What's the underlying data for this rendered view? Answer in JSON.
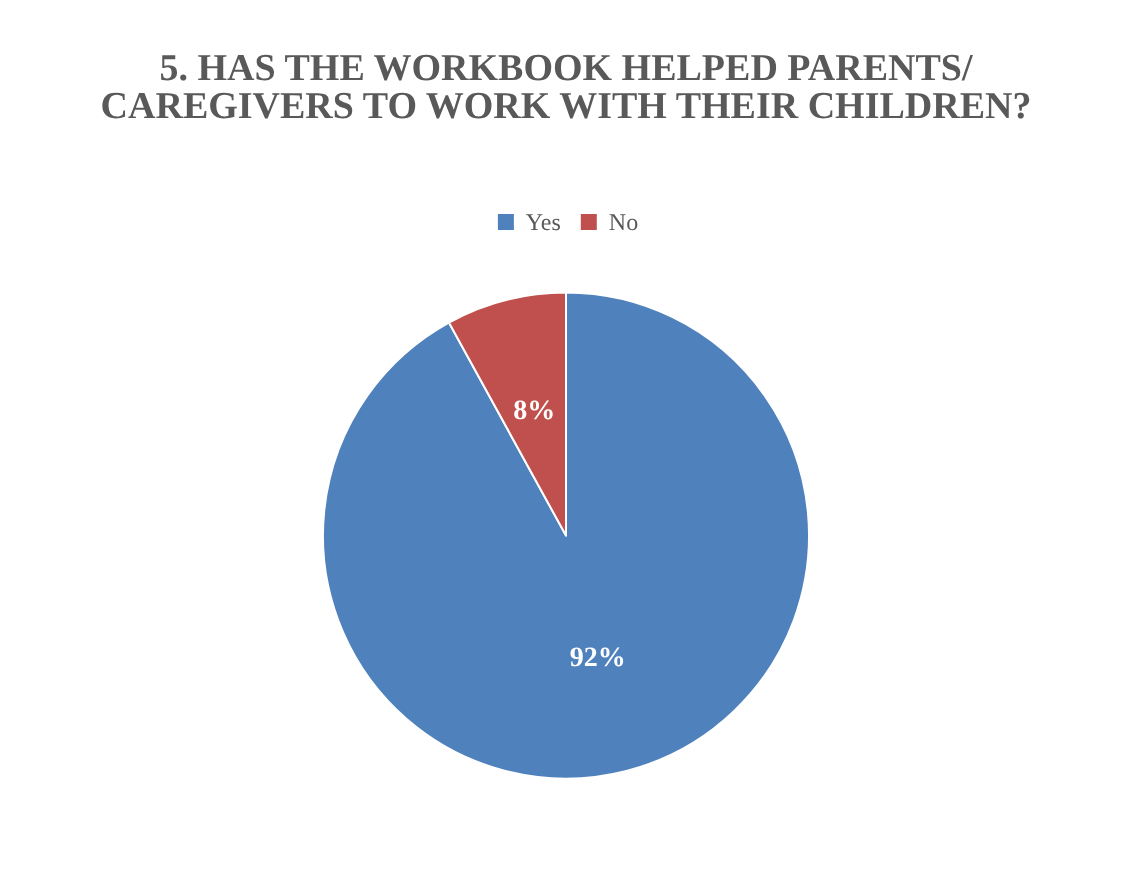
{
  "chart_data": {
    "type": "pie",
    "title": "5. HAS THE WORKBOOK HELPED PARENTS/CAREGIVERS TO WORK WITH THEIR CHILDREN?",
    "categories": [
      "Yes",
      "No"
    ],
    "values": [
      92,
      8
    ],
    "colors": [
      "#4f81bd",
      "#c0504d"
    ],
    "value_labels": [
      "92%",
      "8%"
    ],
    "legend": "top"
  }
}
